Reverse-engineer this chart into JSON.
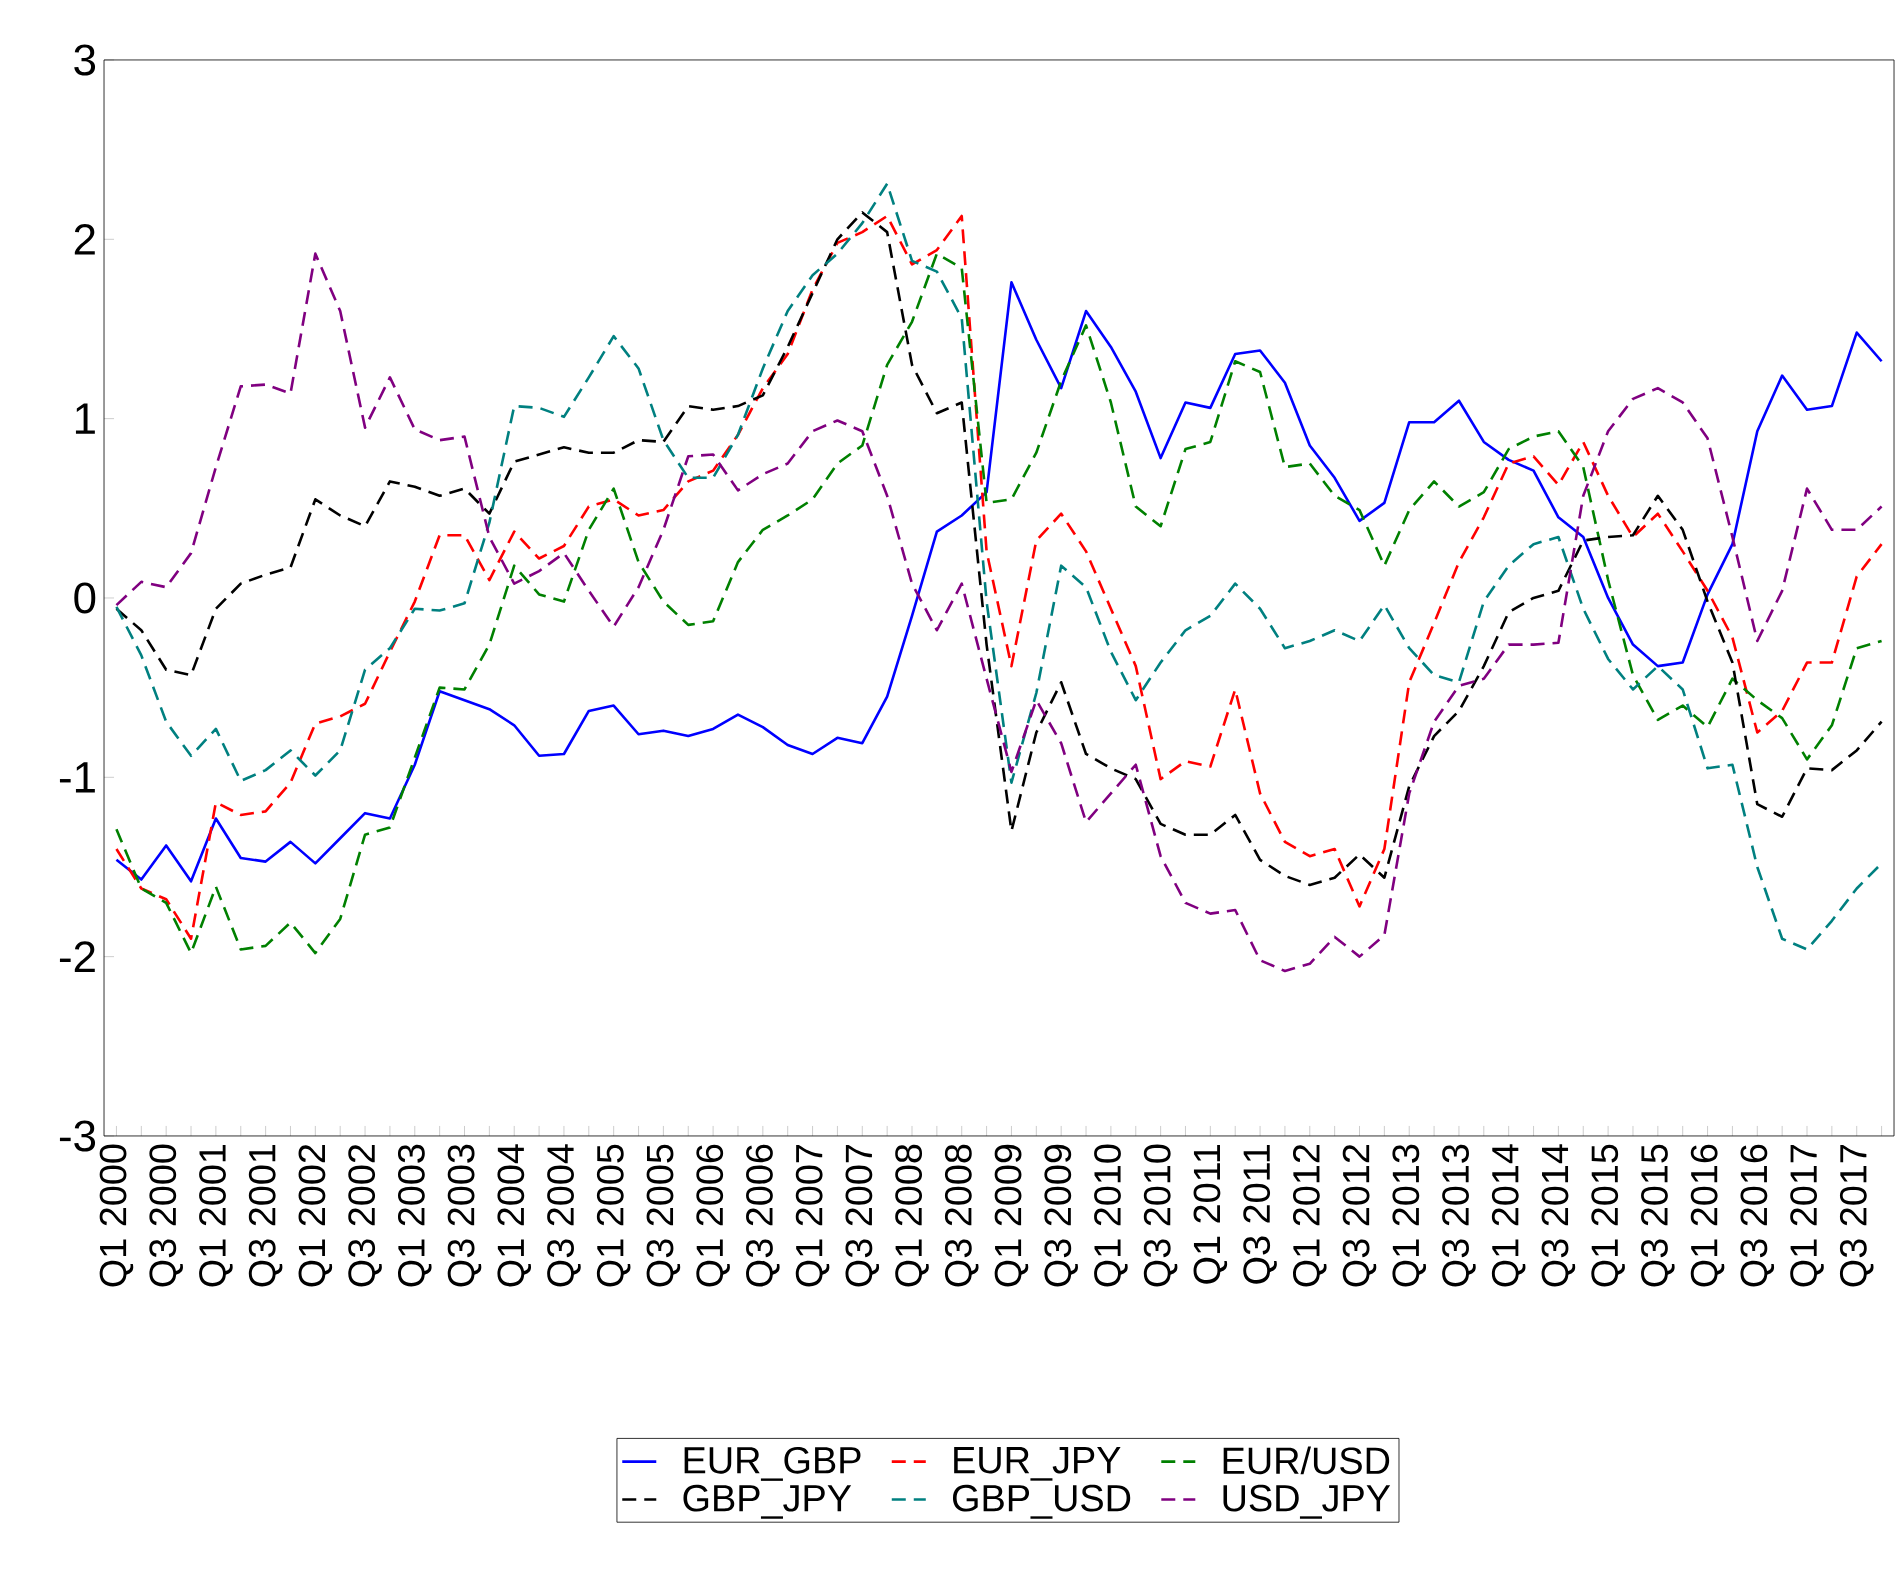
{
  "chart_data": {
    "type": "line",
    "categories": [
      "Q1 2000",
      null,
      "Q3 2000",
      null,
      "Q1 2001",
      null,
      "Q3 2001",
      null,
      "Q1 2002",
      null,
      "Q3 2002",
      null,
      "Q1 2003",
      null,
      "Q3 2003",
      null,
      "Q1 2004",
      null,
      "Q3 2004",
      null,
      "Q1 2005",
      null,
      "Q3 2005",
      null,
      "Q1 2006",
      null,
      "Q3 2006",
      null,
      "Q1 2007",
      null,
      "Q3 2007",
      null,
      "Q1 2008",
      null,
      "Q3 2008",
      null,
      "Q1 2009",
      null,
      "Q3 2009",
      null,
      "Q1 2010",
      null,
      "Q3 2010",
      null,
      "Q1 2011",
      null,
      "Q3 2011",
      null,
      "Q1 2012",
      null,
      "Q3 2012",
      null,
      "Q1 2013",
      null,
      "Q3 2013",
      null,
      "Q1 2014",
      null,
      "Q3 2014",
      null,
      "Q1 2015",
      null,
      "Q3 2015",
      null,
      "Q1 2016",
      null,
      "Q3 2016",
      null,
      "Q1 2017",
      null,
      "Q3 2017",
      null
    ],
    "ylim": [
      -3,
      3
    ],
    "yticks": [
      -3,
      -2,
      -1,
      0,
      1,
      2,
      3
    ],
    "grid": false,
    "legend": "bottom",
    "marker": "none",
    "series": [
      {
        "name": "EUR_GBP",
        "color": "#0000ff",
        "line_style": "solid",
        "values": [
          -1.46,
          -1.57,
          -1.38,
          -1.58,
          -1.23,
          -1.45,
          -1.47,
          -1.36,
          -1.48,
          -1.34,
          -1.2,
          -1.23,
          -0.93,
          -0.52,
          -0.57,
          -0.62,
          -0.71,
          -0.88,
          -0.87,
          -0.63,
          -0.6,
          -0.76,
          -0.74,
          -0.77,
          -0.73,
          -0.65,
          -0.72,
          -0.82,
          -0.87,
          -0.78,
          -0.81,
          -0.55,
          -0.1,
          0.37,
          0.46,
          0.59,
          1.76,
          1.44,
          1.17,
          1.6,
          1.4,
          1.15,
          0.78,
          1.09,
          1.06,
          1.36,
          1.38,
          1.2,
          0.85,
          0.67,
          0.43,
          0.53,
          0.98,
          0.98,
          1.1,
          0.87,
          0.77,
          0.71,
          0.45,
          0.34,
          0.0,
          -0.26,
          -0.38,
          -0.36,
          0.02,
          0.3,
          0.93,
          1.24,
          1.05,
          1.07,
          1.48,
          1.32
        ]
      },
      {
        "name": "EUR_JPY",
        "color": "#ff0000",
        "line_style": "dashed",
        "values": [
          -1.4,
          -1.62,
          -1.68,
          -1.9,
          -1.14,
          -1.21,
          -1.19,
          -1.03,
          -0.7,
          -0.66,
          -0.59,
          -0.3,
          -0.02,
          0.35,
          0.35,
          0.1,
          0.37,
          0.22,
          0.29,
          0.51,
          0.55,
          0.46,
          0.49,
          0.65,
          0.71,
          0.91,
          1.17,
          1.36,
          1.72,
          1.98,
          2.04,
          2.13,
          1.86,
          1.94,
          2.13,
          0.26,
          -0.38,
          0.32,
          0.47,
          0.26,
          -0.06,
          -0.38,
          -1.01,
          -0.91,
          -0.94,
          -0.51,
          -1.09,
          -1.36,
          -1.44,
          -1.4,
          -1.72,
          -1.4,
          -0.47,
          -0.14,
          0.2,
          0.45,
          0.75,
          0.79,
          0.63,
          0.87,
          0.57,
          0.34,
          0.47,
          0.26,
          0.04,
          -0.22,
          -0.75,
          -0.63,
          -0.36,
          -0.36,
          0.12,
          0.3
        ]
      },
      {
        "name": "EUR/USD",
        "color": "#008000",
        "line_style": "dashed",
        "values": [
          -1.29,
          -1.62,
          -1.7,
          -1.98,
          -1.61,
          -1.96,
          -1.94,
          -1.81,
          -1.98,
          -1.79,
          -1.32,
          -1.28,
          -0.89,
          -0.5,
          -0.51,
          -0.26,
          0.18,
          0.02,
          -0.02,
          0.38,
          0.61,
          0.2,
          -0.02,
          -0.15,
          -0.13,
          0.2,
          0.38,
          0.46,
          0.55,
          0.75,
          0.85,
          1.3,
          1.54,
          1.92,
          1.84,
          0.53,
          0.55,
          0.81,
          1.21,
          1.52,
          1.09,
          0.51,
          0.4,
          0.83,
          0.87,
          1.32,
          1.26,
          0.73,
          0.75,
          0.57,
          0.49,
          0.18,
          0.49,
          0.65,
          0.51,
          0.59,
          0.83,
          0.9,
          0.93,
          0.73,
          0.1,
          -0.43,
          -0.68,
          -0.6,
          -0.72,
          -0.45,
          -0.57,
          -0.67,
          -0.9,
          -0.71,
          -0.28,
          -0.24
        ]
      },
      {
        "name": "GBP_JPY",
        "color": "#000000",
        "line_style": "dashed",
        "values": [
          -0.06,
          -0.18,
          -0.4,
          -0.43,
          -0.06,
          0.08,
          0.13,
          0.17,
          0.55,
          0.46,
          0.4,
          0.65,
          0.62,
          0.57,
          0.61,
          0.47,
          0.76,
          0.8,
          0.84,
          0.81,
          0.81,
          0.88,
          0.87,
          1.07,
          1.05,
          1.07,
          1.13,
          1.4,
          1.7,
          2.0,
          2.15,
          2.04,
          1.3,
          1.03,
          1.09,
          -0.26,
          -1.3,
          -0.75,
          -0.47,
          -0.87,
          -0.95,
          -1.01,
          -1.26,
          -1.32,
          -1.32,
          -1.21,
          -1.46,
          -1.55,
          -1.6,
          -1.56,
          -1.43,
          -1.56,
          -1.05,
          -0.77,
          -0.63,
          -0.38,
          -0.08,
          0.0,
          0.04,
          0.32,
          0.34,
          0.35,
          0.57,
          0.38,
          -0.02,
          -0.36,
          -1.15,
          -1.22,
          -0.95,
          -0.96,
          -0.85,
          -0.69
        ]
      },
      {
        "name": "GBP_USD",
        "color": "#008080",
        "line_style": "dashed",
        "values": [
          -0.05,
          -0.32,
          -0.69,
          -0.88,
          -0.73,
          -1.02,
          -0.96,
          -0.85,
          -0.99,
          -0.85,
          -0.4,
          -0.28,
          -0.06,
          -0.07,
          -0.03,
          0.42,
          1.07,
          1.06,
          1.01,
          1.23,
          1.46,
          1.28,
          0.88,
          0.67,
          0.67,
          0.91,
          1.28,
          1.6,
          1.8,
          1.92,
          2.09,
          2.31,
          1.88,
          1.82,
          1.56,
          -0.02,
          -1.03,
          -0.53,
          0.18,
          0.06,
          -0.3,
          -0.57,
          -0.36,
          -0.18,
          -0.1,
          0.08,
          -0.06,
          -0.28,
          -0.24,
          -0.18,
          -0.24,
          -0.04,
          -0.28,
          -0.43,
          -0.47,
          -0.02,
          0.18,
          0.3,
          0.34,
          -0.06,
          -0.34,
          -0.51,
          -0.38,
          -0.51,
          -0.95,
          -0.93,
          -1.5,
          -1.9,
          -1.96,
          -1.8,
          -1.62,
          -1.48
        ]
      },
      {
        "name": "USD_JPY",
        "color": "#800080",
        "line_style": "dashed",
        "values": [
          -0.04,
          0.09,
          0.06,
          0.25,
          0.73,
          1.18,
          1.19,
          1.14,
          1.92,
          1.6,
          0.95,
          1.23,
          0.94,
          0.88,
          0.9,
          0.34,
          0.08,
          0.15,
          0.25,
          0.04,
          -0.16,
          0.06,
          0.38,
          0.79,
          0.8,
          0.6,
          0.69,
          0.75,
          0.93,
          0.99,
          0.93,
          0.57,
          0.08,
          -0.18,
          0.08,
          -0.45,
          -0.97,
          -0.57,
          -0.81,
          -1.25,
          -1.09,
          -0.93,
          -1.44,
          -1.7,
          -1.76,
          -1.74,
          -2.02,
          -2.08,
          -2.04,
          -1.89,
          -2.0,
          -1.88,
          -1.09,
          -0.69,
          -0.49,
          -0.45,
          -0.26,
          -0.26,
          -0.25,
          0.57,
          0.93,
          1.11,
          1.17,
          1.09,
          0.89,
          0.34,
          -0.24,
          0.04,
          0.61,
          0.38,
          0.38,
          0.51
        ]
      }
    ]
  }
}
